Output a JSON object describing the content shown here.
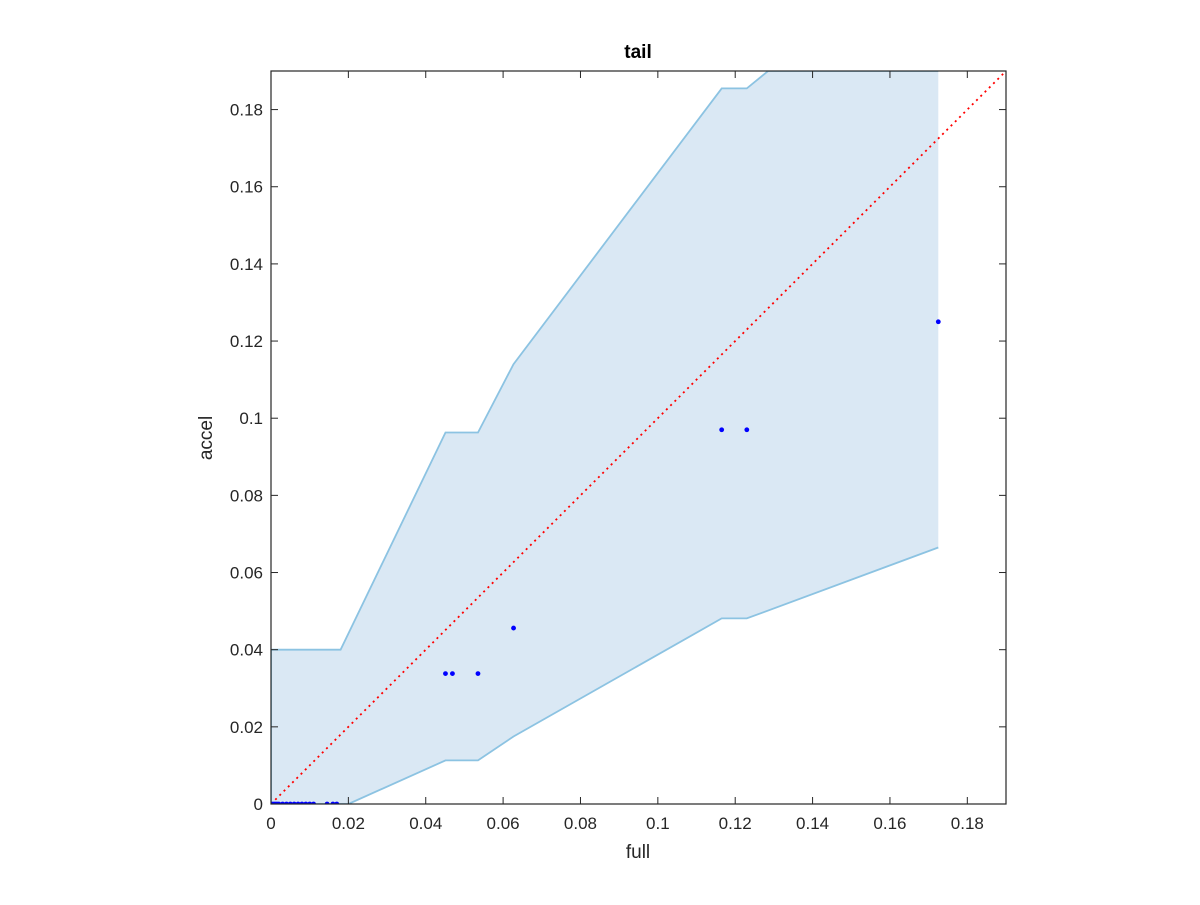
{
  "chart_data": {
    "type": "scatter",
    "title": "tail",
    "xlabel": "full",
    "ylabel": "accel",
    "xlim": [
      0,
      0.19
    ],
    "ylim": [
      0,
      0.19
    ],
    "xticks": [
      "0",
      "0.02",
      "0.04",
      "0.06",
      "0.08",
      "0.1",
      "0.12",
      "0.14",
      "0.16",
      "0.18"
    ],
    "yticks": [
      "0",
      "0.02",
      "0.04",
      "0.06",
      "0.08",
      "0.1",
      "0.12",
      "0.14",
      "0.16",
      "0.18"
    ],
    "grid": false,
    "points": [
      {
        "x": 0.0,
        "y": 0
      },
      {
        "x": 0.0005,
        "y": 0
      },
      {
        "x": 0.001,
        "y": 0
      },
      {
        "x": 0.0015,
        "y": 0
      },
      {
        "x": 0.002,
        "y": 0
      },
      {
        "x": 0.003,
        "y": 0
      },
      {
        "x": 0.004,
        "y": 0
      },
      {
        "x": 0.005,
        "y": 0
      },
      {
        "x": 0.006,
        "y": 0
      },
      {
        "x": 0.007,
        "y": 0
      },
      {
        "x": 0.008,
        "y": 0
      },
      {
        "x": 0.009,
        "y": 0
      },
      {
        "x": 0.01,
        "y": 0
      },
      {
        "x": 0.011,
        "y": 0
      },
      {
        "x": 0.0145,
        "y": 0
      },
      {
        "x": 0.016,
        "y": 0
      },
      {
        "x": 0.017,
        "y": 0
      },
      {
        "x": 0.0451,
        "y": 0.0338
      },
      {
        "x": 0.0469,
        "y": 0.0338
      },
      {
        "x": 0.0535,
        "y": 0.0338
      },
      {
        "x": 0.0627,
        "y": 0.0456
      },
      {
        "x": 0.1165,
        "y": 0.097
      },
      {
        "x": 0.123,
        "y": 0.097
      },
      {
        "x": 0.1725,
        "y": 0.125
      }
    ],
    "band_upper": [
      {
        "x": 0,
        "y": 0.04
      },
      {
        "x": 0.018,
        "y": 0.04
      },
      {
        "x": 0.0451,
        "y": 0.0963
      },
      {
        "x": 0.0535,
        "y": 0.0963
      },
      {
        "x": 0.0627,
        "y": 0.114
      },
      {
        "x": 0.1165,
        "y": 0.1855
      },
      {
        "x": 0.123,
        "y": 0.1855
      },
      {
        "x": 0.1285,
        "y": 0.19
      },
      {
        "x": 0.1725,
        "y": 0.19
      }
    ],
    "band_lower": [
      {
        "x": 0.1725,
        "y": 0.0665
      },
      {
        "x": 0.123,
        "y": 0.0481
      },
      {
        "x": 0.1165,
        "y": 0.0481
      },
      {
        "x": 0.0627,
        "y": 0.0175
      },
      {
        "x": 0.0535,
        "y": 0.0113
      },
      {
        "x": 0.0451,
        "y": 0.0113
      },
      {
        "x": 0.02,
        "y": 0
      },
      {
        "x": 0,
        "y": 0
      }
    ],
    "reference_line": {
      "from": [
        0,
        0
      ],
      "to": [
        0.19,
        0.19
      ]
    },
    "colors": {
      "points": "#0000ff",
      "band_fill": "#dae8f4",
      "band_edge": "#8cc3e2",
      "reference_line": "#ff0000",
      "axes": "#262626"
    }
  }
}
